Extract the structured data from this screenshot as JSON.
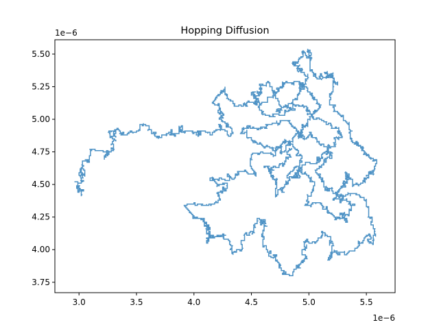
{
  "chart_data": {
    "type": "line",
    "title": "Hopping Diffusion",
    "xlabel": "",
    "ylabel": "",
    "x_offset_label": "1e−6",
    "y_offset_label": "1e−6",
    "xlim": [
      2.79,
      5.75
    ],
    "ylim": [
      3.67,
      5.61
    ],
    "x_ticks": [
      3.0,
      3.5,
      4.0,
      4.5,
      5.0,
      5.5
    ],
    "x_tick_labels": [
      "3.0",
      "3.5",
      "4.0",
      "4.5",
      "5.0",
      "5.5"
    ],
    "y_ticks": [
      3.75,
      4.0,
      4.25,
      4.5,
      4.75,
      5.0,
      5.25,
      5.5
    ],
    "y_tick_labels": [
      "3.75",
      "4.00",
      "4.25",
      "4.50",
      "4.75",
      "5.00",
      "5.25",
      "5.50"
    ],
    "grid": false,
    "series": [
      {
        "color": "#4a90c4",
        "style": "lattice random walk (Manhattan steps)",
        "step": 0.01,
        "waypoints": [
          [
            3.03,
            4.42
          ],
          [
            2.95,
            4.52
          ],
          [
            3.06,
            4.55
          ],
          [
            3.02,
            4.63
          ],
          [
            3.1,
            4.7
          ],
          [
            3.08,
            4.78
          ],
          [
            3.22,
            4.74
          ],
          [
            3.3,
            4.78
          ],
          [
            3.25,
            4.9
          ],
          [
            3.42,
            4.88
          ],
          [
            3.55,
            4.95
          ],
          [
            3.65,
            4.88
          ],
          [
            3.8,
            4.92
          ],
          [
            3.92,
            4.88
          ],
          [
            4.08,
            4.92
          ],
          [
            4.22,
            4.95
          ],
          [
            4.32,
            4.86
          ],
          [
            4.2,
            5.05
          ],
          [
            4.28,
            5.25
          ],
          [
            4.35,
            5.12
          ],
          [
            4.55,
            5.1
          ],
          [
            4.65,
            5.3
          ],
          [
            4.72,
            5.05
          ],
          [
            4.9,
            5.18
          ],
          [
            4.85,
            5.45
          ],
          [
            5.0,
            5.55
          ],
          [
            5.08,
            5.3
          ],
          [
            5.25,
            5.25
          ],
          [
            5.2,
            5.05
          ],
          [
            5.35,
            4.95
          ],
          [
            5.4,
            4.8
          ],
          [
            5.55,
            4.68
          ],
          [
            5.45,
            4.5
          ],
          [
            5.3,
            4.6
          ],
          [
            5.2,
            4.4
          ],
          [
            5.5,
            4.35
          ],
          [
            5.55,
            4.05
          ],
          [
            5.4,
            4.0
          ],
          [
            5.15,
            3.92
          ],
          [
            5.1,
            4.15
          ],
          [
            4.95,
            4.05
          ],
          [
            4.85,
            3.82
          ],
          [
            4.7,
            3.9
          ],
          [
            4.6,
            4.05
          ],
          [
            4.55,
            4.25
          ],
          [
            4.45,
            4.1
          ],
          [
            4.35,
            3.95
          ],
          [
            4.25,
            4.1
          ],
          [
            4.1,
            4.05
          ],
          [
            4.05,
            4.25
          ],
          [
            3.9,
            4.35
          ],
          [
            4.15,
            4.35
          ],
          [
            4.3,
            4.5
          ],
          [
            4.15,
            4.55
          ],
          [
            4.4,
            4.6
          ],
          [
            4.55,
            4.55
          ],
          [
            4.5,
            4.75
          ],
          [
            4.7,
            4.7
          ],
          [
            4.8,
            4.85
          ],
          [
            4.95,
            4.7
          ],
          [
            4.8,
            4.55
          ],
          [
            5.05,
            4.5
          ],
          [
            4.95,
            4.35
          ],
          [
            5.2,
            4.25
          ],
          [
            5.35,
            4.2
          ],
          [
            5.25,
            4.45
          ],
          [
            5.05,
            4.6
          ],
          [
            5.2,
            4.75
          ],
          [
            5.0,
            4.9
          ],
          [
            4.8,
            5.0
          ],
          [
            4.6,
            4.95
          ],
          [
            4.4,
            4.9
          ],
          [
            4.55,
            4.8
          ],
          [
            4.75,
            4.8
          ],
          [
            4.95,
            4.95
          ],
          [
            5.1,
            5.1
          ],
          [
            4.9,
            5.3
          ],
          [
            4.7,
            5.2
          ],
          [
            4.5,
            5.2
          ],
          [
            4.6,
            5.05
          ],
          [
            4.85,
            5.1
          ],
          [
            5.05,
            5.0
          ],
          [
            5.3,
            4.85
          ],
          [
            5.1,
            4.7
          ],
          [
            4.9,
            4.6
          ],
          [
            4.7,
            4.4
          ],
          [
            4.6,
            4.65
          ],
          [
            4.85,
            4.75
          ]
        ]
      }
    ]
  }
}
